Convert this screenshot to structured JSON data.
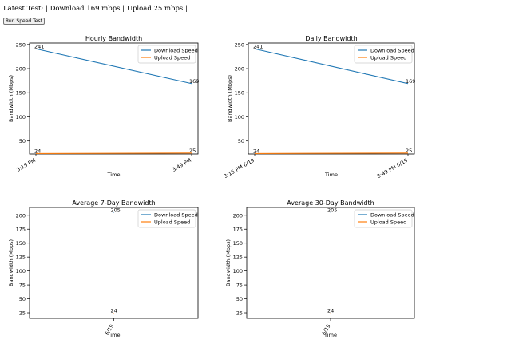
{
  "header": {
    "status_text": "Latest Test: | Download 169 mbps | Upload 25 mbps |",
    "run_button_label": "Run Speed Test"
  },
  "colors": {
    "download": "#1f77b4",
    "upload": "#ff7f0e"
  },
  "chart_data": [
    {
      "type": "line",
      "title": "Hourly Bandwidth",
      "xlabel": "Time",
      "ylabel": "Bandwidth (Mbps)",
      "x": [
        "3:15 PM",
        "3:49 PM"
      ],
      "ylim": [
        23,
        253
      ],
      "yticks": [
        50,
        100,
        150,
        200,
        250
      ],
      "legend": "top-right",
      "series": [
        {
          "name": "Download Speed",
          "values": [
            241,
            169
          ],
          "labels": [
            "241",
            "169"
          ]
        },
        {
          "name": "Upload Speed",
          "values": [
            24,
            25
          ],
          "labels": [
            "24",
            "25"
          ]
        }
      ]
    },
    {
      "type": "line",
      "title": "Daily Bandwidth",
      "xlabel": "Time",
      "ylabel": "Bandwidth (Mbps)",
      "x": [
        "3:15 PM 6/19",
        "3:49 PM 6/19"
      ],
      "ylim": [
        23,
        253
      ],
      "yticks": [
        50,
        100,
        150,
        200,
        250
      ],
      "legend": "top-right",
      "series": [
        {
          "name": "Download Speed",
          "values": [
            241,
            169
          ],
          "labels": [
            "241",
            "169"
          ]
        },
        {
          "name": "Upload Speed",
          "values": [
            24,
            25
          ],
          "labels": [
            "24",
            "25"
          ]
        }
      ]
    },
    {
      "type": "line",
      "title": "Average 7-Day Bandwidth",
      "xlabel": "Time",
      "ylabel": "Bandwidth (Mbps)",
      "x": [
        "6/19"
      ],
      "ylim": [
        15,
        214
      ],
      "yticks": [
        25,
        50,
        75,
        100,
        125,
        150,
        175,
        200
      ],
      "legend": "top-right",
      "series": [
        {
          "name": "Download Speed",
          "values": [
            205
          ],
          "labels": [
            "205"
          ]
        },
        {
          "name": "Upload Speed",
          "values": [
            24
          ],
          "labels": [
            "24"
          ]
        }
      ]
    },
    {
      "type": "line",
      "title": "Average 30-Day Bandwidth",
      "xlabel": "Time",
      "ylabel": "Bandwidth (Mbps)",
      "x": [
        "6/19"
      ],
      "ylim": [
        15,
        214
      ],
      "yticks": [
        25,
        50,
        75,
        100,
        125,
        150,
        175,
        200
      ],
      "legend": "top-right",
      "series": [
        {
          "name": "Download Speed",
          "values": [
            205
          ],
          "labels": [
            "205"
          ]
        },
        {
          "name": "Upload Speed",
          "values": [
            24
          ],
          "labels": [
            "24"
          ]
        }
      ]
    }
  ]
}
